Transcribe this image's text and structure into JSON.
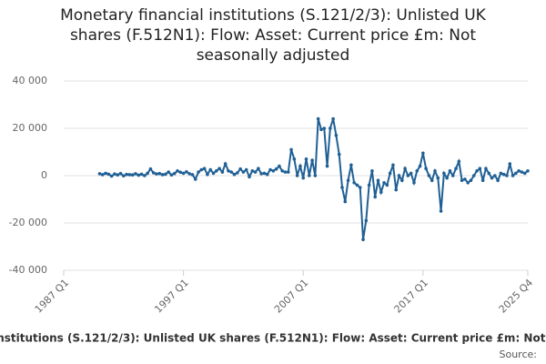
{
  "chart_data": {
    "type": "line",
    "title": "Monetary financial institutions (S.121/2/3): Unlisted UK shares (F.512N1): Flow: Asset: Current price £m: Not seasonally adjusted",
    "source": "Source:",
    "categories": [
      "1987 Q1",
      null,
      null,
      null,
      null,
      null,
      null,
      null,
      null,
      null,
      null,
      null,
      null,
      null,
      null,
      null,
      null,
      null,
      null,
      null,
      null,
      null,
      null,
      null,
      null,
      null,
      null,
      null,
      null,
      null,
      null,
      null,
      null,
      null,
      null,
      null,
      null,
      null,
      null,
      null,
      "1997 Q1",
      null,
      null,
      null,
      null,
      null,
      null,
      null,
      null,
      null,
      null,
      null,
      null,
      null,
      null,
      null,
      null,
      null,
      null,
      null,
      null,
      null,
      null,
      null,
      null,
      null,
      null,
      null,
      null,
      null,
      null,
      null,
      null,
      null,
      null,
      null,
      null,
      null,
      null,
      null,
      "2007 Q1",
      null,
      null,
      null,
      null,
      null,
      null,
      null,
      null,
      null,
      null,
      null,
      null,
      null,
      null,
      null,
      null,
      null,
      null,
      null,
      null,
      null,
      null,
      null,
      null,
      null,
      null,
      null,
      null,
      null,
      null,
      null,
      null,
      null,
      null,
      null,
      null,
      null,
      null,
      null,
      "2017 Q1",
      null,
      null,
      null,
      null,
      null,
      null,
      null,
      null,
      null,
      null,
      null,
      null,
      null,
      null,
      null,
      null,
      null,
      null,
      null,
      null,
      null,
      null,
      null,
      null,
      null,
      null,
      null,
      null,
      null,
      null,
      null,
      null,
      null,
      null,
      "2025 Q4"
    ],
    "series": [
      {
        "name": "Monetary financial institutions (S.121/2/3): Unlisted UK shares (F.512N1): Flow: Asset: Current price £m: Not seasonally adjusted",
        "color": "#206095",
        "values": [
          null,
          null,
          null,
          null,
          null,
          null,
          null,
          null,
          null,
          null,
          null,
          null,
          800,
          400,
          1000,
          600,
          -200,
          700,
          300,
          900,
          -100,
          500,
          400,
          300,
          800,
          200,
          600,
          0,
          1000,
          2800,
          1200,
          700,
          900,
          400,
          600,
          1500,
          300,
          900,
          2000,
          1400,
          1000,
          1600,
          800,
          400,
          -1500,
          1500,
          2500,
          3000,
          500,
          2500,
          1000,
          2000,
          3000,
          1500,
          5000,
          2000,
          1500,
          500,
          1200,
          2800,
          1500,
          2500,
          -500,
          2000,
          1500,
          3000,
          800,
          1000,
          500,
          2500,
          2000,
          2800,
          4000,
          2000,
          1500,
          1500,
          11000,
          7000,
          0,
          4000,
          -1000,
          7000,
          0,
          6500,
          0,
          24000,
          19500,
          20000,
          4000,
          20000,
          24000,
          17000,
          9000,
          -5000,
          -11000,
          -2000,
          4500,
          -3000,
          -4000,
          -5000,
          -27000,
          -19000,
          -4000,
          2000,
          -9000,
          -2000,
          -7000,
          -3000,
          -4000,
          1000,
          4500,
          -6000,
          0,
          -2000,
          3000,
          0,
          1000,
          -3000,
          2000,
          4000,
          9500,
          3000,
          0,
          -2000,
          2000,
          -1000,
          -15000,
          1000,
          -1000,
          2000,
          0,
          3000,
          6000,
          -2000,
          -1500,
          -3000,
          -2000,
          0,
          2000,
          3000,
          -2000,
          3000,
          1000,
          -1000,
          0,
          -2000,
          1000,
          500,
          0,
          5000,
          0,
          1000,
          2000,
          1500,
          1000,
          2000
        ]
      }
    ],
    "ylim": [
      -40000,
      40000
    ],
    "yticks": [
      {
        "value": -40000,
        "label": "-40 000"
      },
      {
        "value": -20000,
        "label": "-20 000"
      },
      0,
      {
        "value": 20000,
        "label": "20 000"
      },
      {
        "value": 40000,
        "label": "40 000"
      }
    ],
    "grid": true
  }
}
